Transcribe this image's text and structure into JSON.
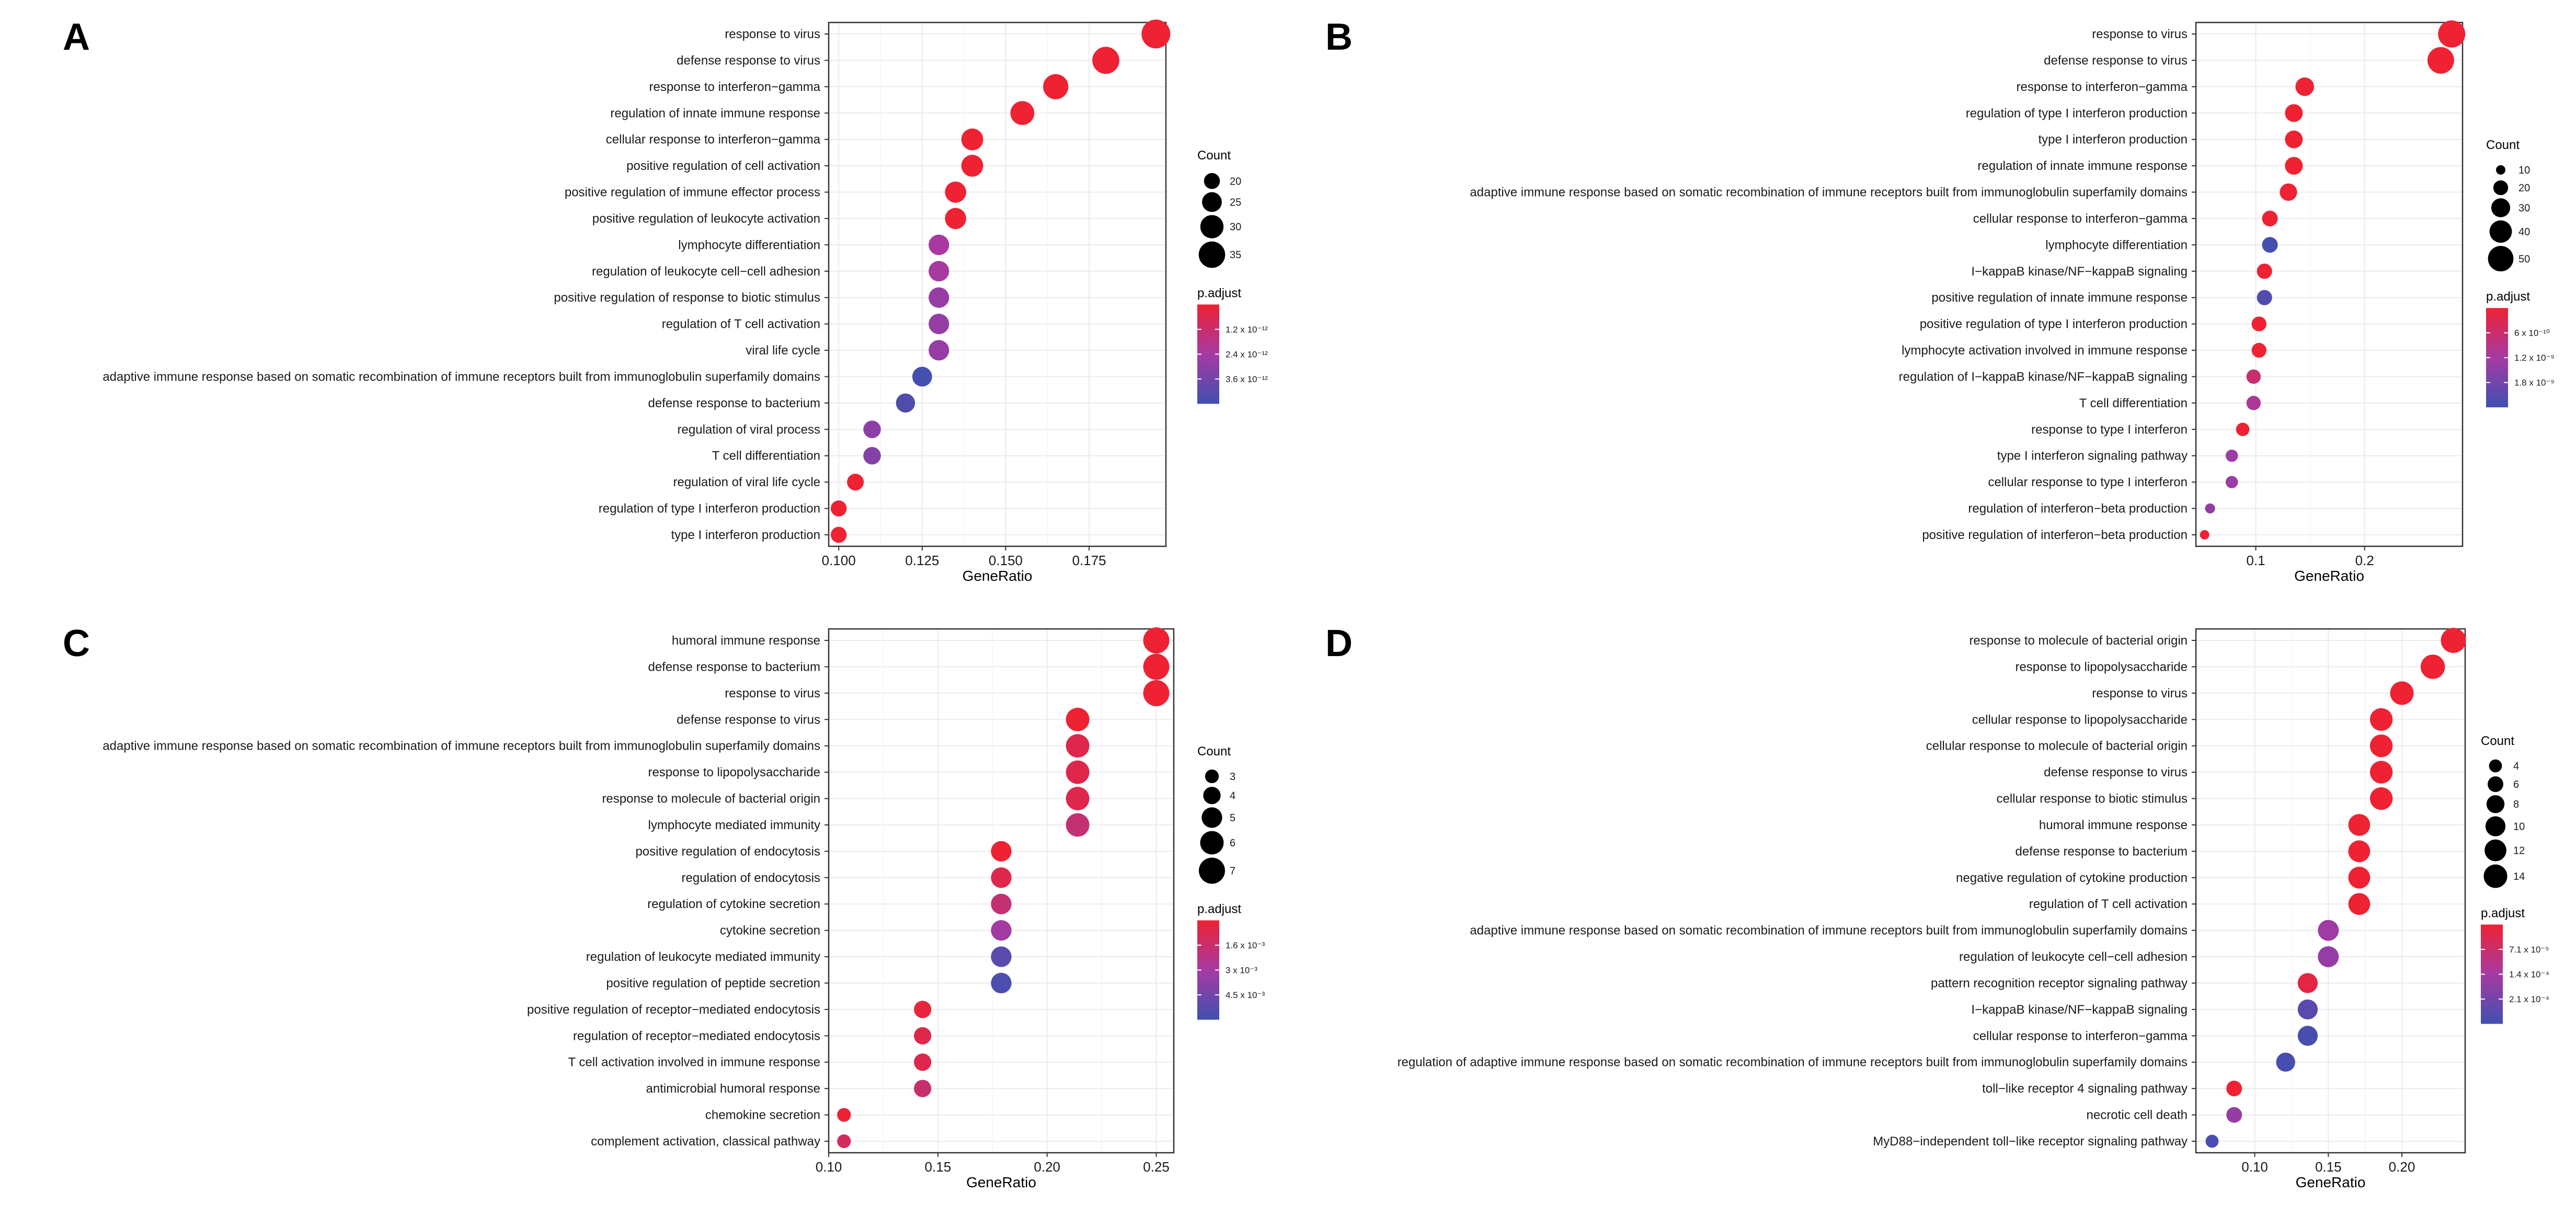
{
  "figure": {
    "panels": [
      "A",
      "B",
      "C",
      "D"
    ]
  },
  "colors": {
    "low": "#4050b0",
    "mid": "#a63aa3",
    "high": "#ee2233",
    "grid": "#ebebeb",
    "frame": "#333333"
  },
  "chart_data": [
    {
      "panel": "A",
      "type": "scatter",
      "xlabel": "GeneRatio",
      "xlim": [
        0.097,
        0.198
      ],
      "xticks": [
        0.1,
        0.125,
        0.15,
        0.175
      ],
      "xtick_labels": [
        "0.100",
        "0.125",
        "0.150",
        "0.175"
      ],
      "size_legend": {
        "title": "Count",
        "values": [
          20,
          25,
          30,
          35
        ],
        "labels": [
          "20",
          "25",
          "30",
          "35"
        ],
        "range": [
          16,
          38
        ]
      },
      "color_legend": {
        "title": "p.adjust",
        "labels": [
          "1.2 x 10⁻¹²",
          "2.4 x 10⁻¹²",
          "3.6 x 10⁻¹²"
        ],
        "range": [
          0,
          4.5e-12
        ]
      },
      "points": [
        {
          "term": "response to virus",
          "gene_ratio": 0.195,
          "count": 39,
          "p_adjust": 1e-14
        },
        {
          "term": "defense response to virus",
          "gene_ratio": 0.18,
          "count": 36,
          "p_adjust": 1e-14
        },
        {
          "term": "response to interferon−gamma",
          "gene_ratio": 0.165,
          "count": 33,
          "p_adjust": 1e-14
        },
        {
          "term": "regulation of innate immune response",
          "gene_ratio": 0.155,
          "count": 31,
          "p_adjust": 1e-14
        },
        {
          "term": "cellular response to interferon−gamma",
          "gene_ratio": 0.14,
          "count": 28,
          "p_adjust": 1e-14
        },
        {
          "term": "positive regulation of cell activation",
          "gene_ratio": 0.14,
          "count": 28,
          "p_adjust": 1e-14
        },
        {
          "term": "positive regulation of immune effector process",
          "gene_ratio": 0.135,
          "count": 27,
          "p_adjust": 1e-14
        },
        {
          "term": "positive regulation of leukocyte activation",
          "gene_ratio": 0.135,
          "count": 27,
          "p_adjust": 1e-14
        },
        {
          "term": "lymphocyte differentiation",
          "gene_ratio": 0.13,
          "count": 26,
          "p_adjust": 2.2e-12
        },
        {
          "term": "regulation of leukocyte cell−cell adhesion",
          "gene_ratio": 0.13,
          "count": 26,
          "p_adjust": 2.2e-12
        },
        {
          "term": "positive regulation of response to biotic stimulus",
          "gene_ratio": 0.13,
          "count": 26,
          "p_adjust": 2.6e-12
        },
        {
          "term": "regulation of T cell activation",
          "gene_ratio": 0.13,
          "count": 26,
          "p_adjust": 2.6e-12
        },
        {
          "term": "viral life cycle",
          "gene_ratio": 0.13,
          "count": 26,
          "p_adjust": 2.6e-12
        },
        {
          "term": "adaptive immune response based on somatic recombination of immune receptors built from immunoglobulin superfamily domains",
          "gene_ratio": 0.125,
          "count": 25,
          "p_adjust": 4.4e-12
        },
        {
          "term": "defense response to bacterium",
          "gene_ratio": 0.12,
          "count": 24,
          "p_adjust": 4.2e-12
        },
        {
          "term": "regulation of viral process",
          "gene_ratio": 0.11,
          "count": 22,
          "p_adjust": 2.8e-12
        },
        {
          "term": "T cell differentiation",
          "gene_ratio": 0.11,
          "count": 22,
          "p_adjust": 3e-12
        },
        {
          "term": "regulation of viral life cycle",
          "gene_ratio": 0.105,
          "count": 21,
          "p_adjust": 1e-14
        },
        {
          "term": "regulation of type I interferon production",
          "gene_ratio": 0.1,
          "count": 20,
          "p_adjust": 1e-14
        },
        {
          "term": "type I interferon production",
          "gene_ratio": 0.1,
          "count": 20,
          "p_adjust": 1e-14
        }
      ]
    },
    {
      "panel": "B",
      "type": "scatter",
      "xlabel": "GeneRatio",
      "xlim": [
        0.045,
        0.29
      ],
      "xticks": [
        0.1,
        0.2
      ],
      "xtick_labels": [
        "0.1",
        "0.2"
      ],
      "size_legend": {
        "title": "Count",
        "values": [
          10,
          20,
          30,
          40,
          50
        ],
        "labels": [
          "10",
          "20",
          "30",
          "40",
          "50"
        ],
        "range": [
          10,
          56
        ]
      },
      "color_legend": {
        "title": "p.adjust",
        "labels": [
          "6 x 10⁻¹⁰",
          "1.2 x 10⁻⁹",
          "1.8 x 10⁻⁹"
        ],
        "range": [
          0,
          2.2e-09
        ]
      },
      "points": [
        {
          "term": "response to virus",
          "gene_ratio": 0.28,
          "count": 56,
          "p_adjust": 1e-12
        },
        {
          "term": "defense response to virus",
          "gene_ratio": 0.27,
          "count": 54,
          "p_adjust": 1e-12
        },
        {
          "term": "response to interferon−gamma",
          "gene_ratio": 0.145,
          "count": 29,
          "p_adjust": 1e-12
        },
        {
          "term": "regulation of type I interferon production",
          "gene_ratio": 0.135,
          "count": 27,
          "p_adjust": 1e-12
        },
        {
          "term": "type I interferon production",
          "gene_ratio": 0.135,
          "count": 27,
          "p_adjust": 1e-12
        },
        {
          "term": "regulation of innate immune response",
          "gene_ratio": 0.135,
          "count": 27,
          "p_adjust": 1e-12
        },
        {
          "term": "adaptive immune response based on somatic recombination of immune receptors built from immunoglobulin superfamily domains",
          "gene_ratio": 0.13,
          "count": 26,
          "p_adjust": 1e-12
        },
        {
          "term": "cellular response to interferon−gamma",
          "gene_ratio": 0.113,
          "count": 22,
          "p_adjust": 1e-12
        },
        {
          "term": "lymphocyte differentiation",
          "gene_ratio": 0.113,
          "count": 22,
          "p_adjust": 2.15e-09
        },
        {
          "term": "I−kappaB kinase/NF−kappaB signaling",
          "gene_ratio": 0.108,
          "count": 21,
          "p_adjust": 1e-12
        },
        {
          "term": "positive regulation of innate immune response",
          "gene_ratio": 0.108,
          "count": 21,
          "p_adjust": 2e-09
        },
        {
          "term": "positive regulation of type I interferon production",
          "gene_ratio": 0.103,
          "count": 20,
          "p_adjust": 1e-12
        },
        {
          "term": "lymphocyte activation involved in immune response",
          "gene_ratio": 0.103,
          "count": 20,
          "p_adjust": 1e-12
        },
        {
          "term": "regulation of I−kappaB kinase/NF−kappaB signaling",
          "gene_ratio": 0.098,
          "count": 19,
          "p_adjust": 6e-10
        },
        {
          "term": "T cell differentiation",
          "gene_ratio": 0.098,
          "count": 19,
          "p_adjust": 1e-09
        },
        {
          "term": "response to type I interferon",
          "gene_ratio": 0.088,
          "count": 17,
          "p_adjust": 1e-12
        },
        {
          "term": "type I interferon signaling pathway",
          "gene_ratio": 0.078,
          "count": 15,
          "p_adjust": 1.2e-09
        },
        {
          "term": "cellular response to type I interferon",
          "gene_ratio": 0.078,
          "count": 15,
          "p_adjust": 1.2e-09
        },
        {
          "term": "regulation of interferon−beta production",
          "gene_ratio": 0.058,
          "count": 11,
          "p_adjust": 1.3e-09
        },
        {
          "term": "positive regulation of interferon−beta production",
          "gene_ratio": 0.053,
          "count": 10,
          "p_adjust": 1e-12
        }
      ]
    },
    {
      "panel": "C",
      "type": "scatter",
      "xlabel": "GeneRatio",
      "xlim": [
        0.1,
        0.258
      ],
      "xticks": [
        0.1,
        0.15,
        0.2,
        0.25
      ],
      "xtick_labels": [
        "0.10",
        "0.15",
        "0.20",
        "0.25"
      ],
      "size_legend": {
        "title": "Count",
        "values": [
          3,
          4,
          5,
          6,
          7
        ],
        "labels": [
          "3",
          "4",
          "5",
          "6",
          "7"
        ],
        "range": [
          2,
          7
        ]
      },
      "color_legend": {
        "title": "p.adjust",
        "labels": [
          "1.6 x 10⁻³",
          "3 x 10⁻³",
          "4.5 x 10⁻³"
        ],
        "range": [
          0,
          0.0055
        ]
      },
      "points": [
        {
          "term": "humoral immune response",
          "gene_ratio": 0.25,
          "count": 7,
          "p_adjust": 1e-05
        },
        {
          "term": "defense response to bacterium",
          "gene_ratio": 0.25,
          "count": 7,
          "p_adjust": 1e-05
        },
        {
          "term": "response to virus",
          "gene_ratio": 0.25,
          "count": 7,
          "p_adjust": 1e-05
        },
        {
          "term": "defense response to virus",
          "gene_ratio": 0.214,
          "count": 6,
          "p_adjust": 1e-05
        },
        {
          "term": "adaptive immune response based on somatic recombination of immune receptors built from immunoglobulin superfamily domains",
          "gene_ratio": 0.214,
          "count": 6,
          "p_adjust": 0.0006
        },
        {
          "term": "response to lipopolysaccharide",
          "gene_ratio": 0.214,
          "count": 6,
          "p_adjust": 0.0006
        },
        {
          "term": "response to molecule of bacterial origin",
          "gene_ratio": 0.214,
          "count": 6,
          "p_adjust": 0.0006
        },
        {
          "term": "lymphocyte mediated immunity",
          "gene_ratio": 0.214,
          "count": 6,
          "p_adjust": 0.0016
        },
        {
          "term": "positive regulation of endocytosis",
          "gene_ratio": 0.179,
          "count": 5,
          "p_adjust": 1e-05
        },
        {
          "term": "regulation of endocytosis",
          "gene_ratio": 0.179,
          "count": 5,
          "p_adjust": 0.0006
        },
        {
          "term": "regulation of cytokine secretion",
          "gene_ratio": 0.179,
          "count": 5,
          "p_adjust": 0.0016
        },
        {
          "term": "cytokine secretion",
          "gene_ratio": 0.179,
          "count": 5,
          "p_adjust": 0.0028
        },
        {
          "term": "regulation of leukocyte mediated immunity",
          "gene_ratio": 0.179,
          "count": 5,
          "p_adjust": 0.0048
        },
        {
          "term": "positive regulation of peptide secretion",
          "gene_ratio": 0.179,
          "count": 5,
          "p_adjust": 0.0052
        },
        {
          "term": "positive regulation of receptor−mediated endocytosis",
          "gene_ratio": 0.143,
          "count": 4,
          "p_adjust": 0.0002
        },
        {
          "term": "regulation of receptor−mediated endocytosis",
          "gene_ratio": 0.143,
          "count": 4,
          "p_adjust": 0.0006
        },
        {
          "term": "T cell activation involved in immune response",
          "gene_ratio": 0.143,
          "count": 4,
          "p_adjust": 0.0006
        },
        {
          "term": "antimicrobial humoral response",
          "gene_ratio": 0.143,
          "count": 4,
          "p_adjust": 0.0014
        },
        {
          "term": "chemokine secretion",
          "gene_ratio": 0.107,
          "count": 3,
          "p_adjust": 1e-05
        },
        {
          "term": "complement activation, classical pathway",
          "gene_ratio": 0.107,
          "count": 3,
          "p_adjust": 0.001
        }
      ]
    },
    {
      "panel": "D",
      "type": "scatter",
      "xlabel": "GeneRatio",
      "xlim": [
        0.06,
        0.243
      ],
      "xticks": [
        0.1,
        0.15,
        0.2
      ],
      "xtick_labels": [
        "0.10",
        "0.15",
        "0.20"
      ],
      "size_legend": {
        "title": "Count",
        "values": [
          4,
          6,
          8,
          10,
          12,
          14
        ],
        "labels": [
          "4",
          "6",
          "8",
          "10",
          "12",
          "14"
        ],
        "range": [
          2,
          16
        ]
      },
      "color_legend": {
        "title": "p.adjust",
        "labels": [
          "7.1 x 10⁻⁵",
          "1.4 x 10⁻⁴",
          "2.1 x 10⁻⁴"
        ],
        "range": [
          0,
          0.00026
        ]
      },
      "points": [
        {
          "term": "response to molecule of bacterial origin",
          "gene_ratio": 0.235,
          "count": 16,
          "p_adjust": 1e-07
        },
        {
          "term": "response to lipopolysaccharide",
          "gene_ratio": 0.221,
          "count": 15,
          "p_adjust": 1e-07
        },
        {
          "term": "response to virus",
          "gene_ratio": 0.2,
          "count": 14,
          "p_adjust": 1e-07
        },
        {
          "term": "cellular response to lipopolysaccharide",
          "gene_ratio": 0.186,
          "count": 13,
          "p_adjust": 1e-07
        },
        {
          "term": "cellular response to molecule of bacterial origin",
          "gene_ratio": 0.186,
          "count": 13,
          "p_adjust": 1e-07
        },
        {
          "term": "defense response to virus",
          "gene_ratio": 0.186,
          "count": 13,
          "p_adjust": 1e-07
        },
        {
          "term": "cellular response to biotic stimulus",
          "gene_ratio": 0.186,
          "count": 13,
          "p_adjust": 1e-07
        },
        {
          "term": "humoral immune response",
          "gene_ratio": 0.171,
          "count": 12,
          "p_adjust": 1e-07
        },
        {
          "term": "defense response to bacterium",
          "gene_ratio": 0.171,
          "count": 12,
          "p_adjust": 1e-07
        },
        {
          "term": "negative regulation of cytokine production",
          "gene_ratio": 0.171,
          "count": 12,
          "p_adjust": 1e-07
        },
        {
          "term": "regulation of T cell activation",
          "gene_ratio": 0.171,
          "count": 12,
          "p_adjust": 1e-07
        },
        {
          "term": "adaptive immune response based on somatic recombination of immune receptors built from immunoglobulin superfamily domains",
          "gene_ratio": 0.15,
          "count": 11,
          "p_adjust": 0.00014
        },
        {
          "term": "regulation of leukocyte cell−cell adhesion",
          "gene_ratio": 0.15,
          "count": 11,
          "p_adjust": 0.00015
        },
        {
          "term": "pattern recognition receptor signaling pathway",
          "gene_ratio": 0.136,
          "count": 10,
          "p_adjust": 2e-05
        },
        {
          "term": "I−kappaB kinase/NF−kappaB signaling",
          "gene_ratio": 0.136,
          "count": 10,
          "p_adjust": 0.00023
        },
        {
          "term": "cellular response to interferon−gamma",
          "gene_ratio": 0.136,
          "count": 10,
          "p_adjust": 0.00025
        },
        {
          "term": "regulation of adaptive immune response based on somatic recombination of immune receptors built from immunoglobulin superfamily domains",
          "gene_ratio": 0.121,
          "count": 9,
          "p_adjust": 0.00025
        },
        {
          "term": "toll−like receptor 4 signaling pathway",
          "gene_ratio": 0.086,
          "count": 6,
          "p_adjust": 1e-07
        },
        {
          "term": "necrotic cell death",
          "gene_ratio": 0.086,
          "count": 6,
          "p_adjust": 0.00015
        },
        {
          "term": "MyD88−independent toll−like receptor signaling pathway",
          "gene_ratio": 0.071,
          "count": 4,
          "p_adjust": 0.00025
        }
      ]
    }
  ]
}
